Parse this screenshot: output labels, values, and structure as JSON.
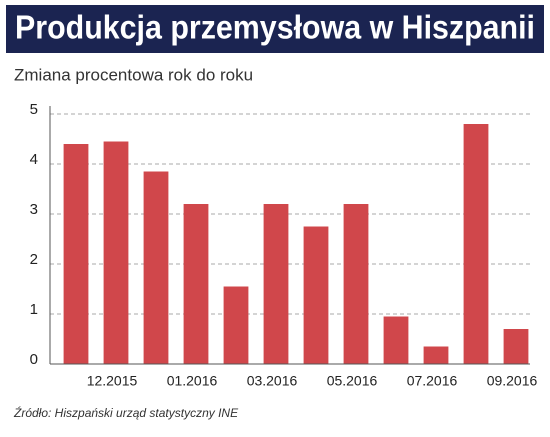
{
  "chart_data": {
    "type": "bar",
    "title": "Produkcja przemysłowa w Hiszpanii",
    "subtitle": "Zmiana procentowa rok do roku",
    "source": "Źródło: Hiszpański urząd statystyczny INE",
    "categories": [
      null,
      "12.2015",
      null,
      "01.2016",
      null,
      "03.2016",
      null,
      "05.2016",
      null,
      "07.2016",
      null,
      "09.2016"
    ],
    "values": [
      4.4,
      4.45,
      3.85,
      3.2,
      1.55,
      3.2,
      2.75,
      3.2,
      0.95,
      0.35,
      4.8,
      0.7
    ],
    "color": "#d0474b",
    "ylim": [
      0,
      5
    ],
    "yticks": [
      0,
      1,
      2,
      3,
      4,
      5
    ],
    "grid": true
  }
}
